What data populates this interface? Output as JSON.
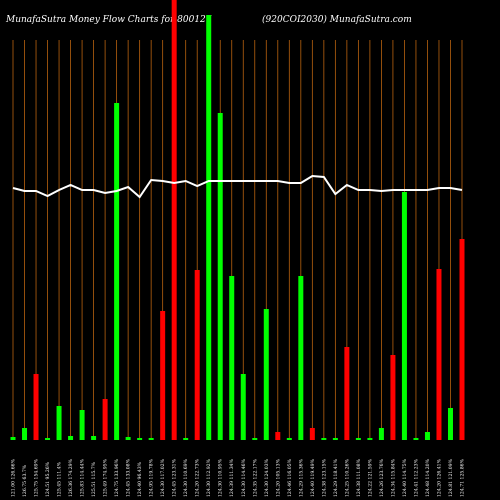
{
  "chart_data": {
    "type": "bar",
    "title": "MunafaSutra  Money Flow  Charts for 800127",
    "subtitle": "(920COI2030) MunafaSutra.com",
    "categories": [
      "121.00 126.66%",
      "126.75 63.7%",
      "125.75 154.69%",
      "124.51 95.26%",
      "125.45 111.4%",
      "126.36 174.29%",
      "125.83 114.44%",
      "125.51 115.7%",
      "125.49 174.95%",
      "124.75 133.96%",
      "124.45 133.08%",
      "124.40 96.43%",
      "124.95 119.78%",
      "124.30 117.02%",
      "124.45 123.31%",
      "124.30 110.69%",
      "124.20 122.73%",
      "124.30 112.92%",
      "124.30 110.95%",
      "124.39 111.34%",
      "124.30 114.46%",
      "124.35 122.17%",
      "124.30 124.03%",
      "124.20 105.13%",
      "124.46 116.05%",
      "124.29 115.36%",
      "124.40 119.49%",
      "124.38 123.15%",
      "124.29 118.41%",
      "124.25 110.26%",
      "124.38 111.08%",
      "124.22 121.59%",
      "124.26 123.76%",
      "124.34 115.84%",
      "124.40 114.75%",
      "124.41 112.23%",
      "124.48 114.20%",
      "124.20 126.41%",
      "124.81 121.09%",
      "124.71 125.86%"
    ],
    "series": [
      {
        "values": [
          3,
          12,
          66,
          2,
          34,
          4,
          30,
          4,
          41,
          337,
          3,
          2,
          2,
          129,
          440,
          2,
          170,
          425,
          327,
          164,
          66,
          2,
          131,
          8,
          2,
          164,
          12,
          2,
          2,
          93,
          2,
          2,
          12,
          85,
          248,
          2,
          8,
          171,
          32,
          201
        ],
        "colors": [
          "#00ff00",
          "#00ff00",
          "#ff0000",
          "#00ff00",
          "#00ff00",
          "#00ff00",
          "#00ff00",
          "#00ff00",
          "#ff0000",
          "#00ff00",
          "#00ff00",
          "#00ff00",
          "#00ff00",
          "#ff0000",
          "#ff0000",
          "#00ff00",
          "#ff0000",
          "#00ff00",
          "#00ff00",
          "#00ff00",
          "#00ff00",
          "#00ff00",
          "#00ff00",
          "#ff0000",
          "#00ff00",
          "#00ff00",
          "#ff0000",
          "#00ff00",
          "#00ff00",
          "#ff0000",
          "#00ff00",
          "#00ff00",
          "#00ff00",
          "#ff0000",
          "#00ff00",
          "#00ff00",
          "#00ff00",
          "#ff0000",
          "#00ff00",
          "#ff0000"
        ]
      },
      {
        "type": "line",
        "color": "#ffffff",
        "values": [
          252,
          249,
          249,
          244,
          250,
          255,
          250,
          250,
          247,
          249,
          253,
          243,
          260,
          259,
          257,
          259,
          254,
          259,
          259,
          259,
          259,
          259,
          259,
          259,
          257,
          257,
          264,
          263,
          246,
          255,
          250,
          250,
          249,
          250,
          250,
          250,
          250,
          252,
          252,
          250
        ]
      }
    ],
    "ylim": [
      0,
      440
    ],
    "grid_color": "#b8620f"
  }
}
